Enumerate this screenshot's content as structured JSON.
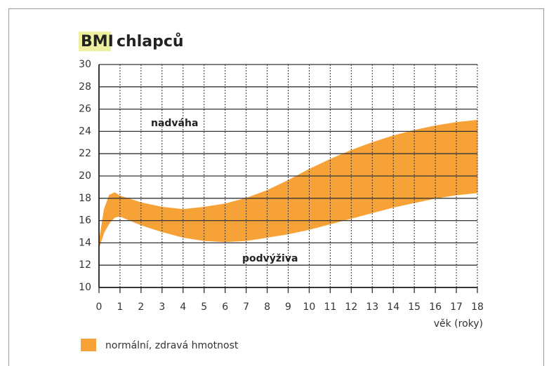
{
  "chart_data": {
    "type": "range_area",
    "title_highlight": "BMI",
    "title": "chlapců",
    "x": [
      0,
      0.25,
      0.5,
      0.75,
      1,
      2,
      3,
      4,
      5,
      6,
      7,
      8,
      9,
      10,
      11,
      12,
      13,
      14,
      15,
      16,
      17,
      18
    ],
    "series": [
      {
        "name": "normální, zdravá hmotnost",
        "color": "#f7a236",
        "upper": [
          14,
          17,
          18.3,
          18.5,
          18.2,
          17.6,
          17.2,
          17,
          17.2,
          17.5,
          18,
          18.7,
          19.6,
          20.6,
          21.5,
          22.3,
          23,
          23.6,
          24.1,
          24.5,
          24.8,
          25
        ],
        "lower": [
          13.6,
          15,
          15.8,
          16.3,
          16.4,
          15.6,
          15,
          14.5,
          14.2,
          14.1,
          14.2,
          14.5,
          14.8,
          15.2,
          15.7,
          16.2,
          16.7,
          17.2,
          17.6,
          18,
          18.3,
          18.5
        ]
      }
    ],
    "xlim": [
      0,
      18
    ],
    "ylim": [
      10,
      30
    ],
    "xticks": [
      0,
      1,
      2,
      3,
      4,
      5,
      6,
      7,
      8,
      9,
      10,
      11,
      12,
      13,
      14,
      15,
      16,
      17,
      18
    ],
    "yticks": [
      10,
      12,
      14,
      16,
      18,
      20,
      22,
      24,
      26,
      28,
      30
    ],
    "xlabel": "věk (roky)",
    "annotations": [
      "nadváha",
      "podvýživa"
    ],
    "grid": true
  }
}
